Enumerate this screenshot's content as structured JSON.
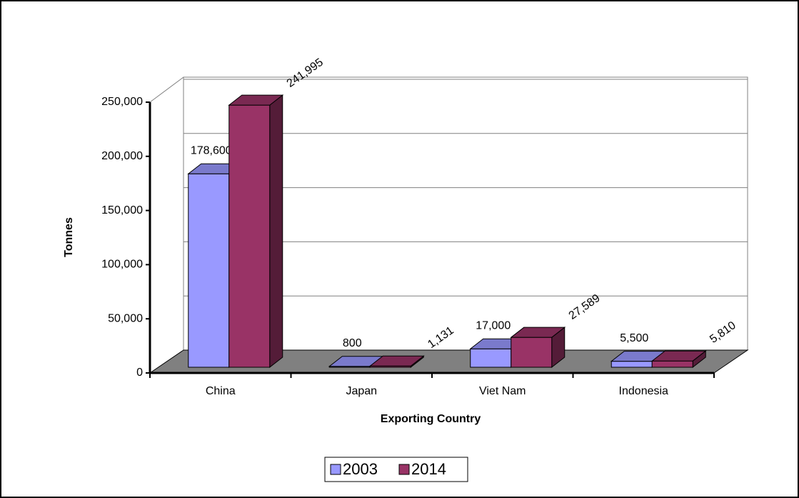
{
  "chart_data": {
    "type": "bar3d",
    "x_label": "Exporting Country",
    "y_label": "Tonnes",
    "categories": [
      "China",
      "Japan",
      "Viet Nam",
      "Indonesia"
    ],
    "series": [
      {
        "name": "2003",
        "color": "#9999ff",
        "values": [
          178600,
          800,
          17000,
          5500
        ],
        "value_labels": [
          "178,600",
          "800",
          "17,000",
          "5,500"
        ]
      },
      {
        "name": "2014",
        "color": "#993366",
        "values": [
          241995,
          1131,
          27589,
          5810
        ],
        "value_labels": [
          "241,995",
          "1,131",
          "27,589",
          "5,810"
        ]
      }
    ],
    "ylim": [
      0,
      250000
    ],
    "yticks": [
      0,
      {
        "value": 50000,
        "label": "50,000"
      },
      {
        "value": 100000,
        "label": "100,000"
      },
      {
        "value": 150000,
        "label": "150,000"
      },
      {
        "value": 200000,
        "label": "200,000"
      },
      {
        "value": 250000,
        "label": "250,000"
      }
    ],
    "grid": true,
    "legend": "bottom"
  }
}
